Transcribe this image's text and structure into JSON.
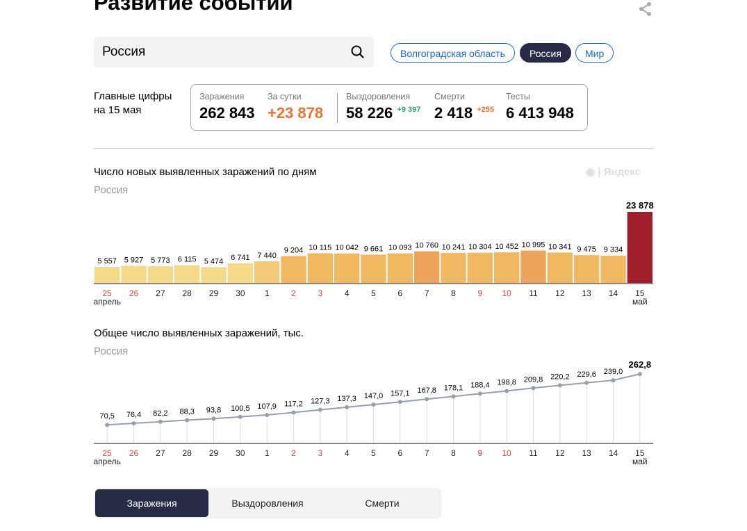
{
  "header": {
    "title": "Развитие событий"
  },
  "search": {
    "value": "Россия"
  },
  "regions": [
    {
      "label": "Волгоградская область",
      "active": false
    },
    {
      "label": "Россия",
      "active": true
    },
    {
      "label": "Мир",
      "active": false
    }
  ],
  "summary": {
    "label_line1": "Главные цифры",
    "label_line2": "на 15 мая",
    "infections": {
      "label": "Заражения",
      "value": "262 843"
    },
    "daily": {
      "label": "За сутки",
      "value": "+23 878"
    },
    "recovered": {
      "label": "Выздоровления",
      "value": "58 226",
      "delta": "+9 397"
    },
    "deaths": {
      "label": "Смерти",
      "value": "2 418",
      "delta": "+255"
    },
    "tests": {
      "label": "Тесты",
      "value": "6 413 948"
    }
  },
  "logo": "Яндекс",
  "colors": {
    "accent": "#1b66d4",
    "dark": "#282b45",
    "orange": "#f0702e",
    "green": "#2aa56b",
    "last_bar": "#a11f2d",
    "red_day": "#e8433a"
  },
  "chart_data": [
    {
      "type": "bar",
      "title": "Число новых выявленных заражений по дням",
      "subtitle": "Россия",
      "categories": [
        "25",
        "26",
        "27",
        "28",
        "29",
        "30",
        "1",
        "2",
        "3",
        "4",
        "5",
        "6",
        "7",
        "8",
        "9",
        "10",
        "11",
        "12",
        "13",
        "14",
        "15"
      ],
      "red_days": [
        "25",
        "26",
        "2",
        "3",
        "9",
        "10"
      ],
      "month_labels": {
        "first": "апрель",
        "last": "май"
      },
      "values": [
        5557,
        5927,
        5773,
        6115,
        5474,
        6741,
        7440,
        9204,
        10115,
        10042,
        9661,
        10093,
        10760,
        10241,
        10304,
        10452,
        10995,
        10341,
        9475,
        9334,
        23878
      ],
      "value_labels": [
        "5 557",
        "5 927",
        "5 773",
        "6 115",
        "5 474",
        "6 741",
        "7 440",
        "9 204",
        "10 115",
        "10 042",
        "9 661",
        "10 093",
        "10 760",
        "10 241",
        "10 304",
        "10 452",
        "10 995",
        "10 341",
        "9 475",
        "9 334",
        "23 878"
      ]
    },
    {
      "type": "line",
      "title": "Общее число выявленных заражений, тыс.",
      "subtitle": "Россия",
      "categories": [
        "25",
        "26",
        "27",
        "28",
        "29",
        "30",
        "1",
        "2",
        "3",
        "4",
        "5",
        "6",
        "7",
        "8",
        "9",
        "10",
        "11",
        "12",
        "13",
        "14",
        "15"
      ],
      "red_days": [
        "25",
        "26",
        "2",
        "3",
        "9",
        "10"
      ],
      "month_labels": {
        "first": "апрель",
        "last": "май"
      },
      "values": [
        70.5,
        76.4,
        82.2,
        88.3,
        93.8,
        100.5,
        107.9,
        117.2,
        127.3,
        137.3,
        147.0,
        157.1,
        167.8,
        178.1,
        188.4,
        198.8,
        209.8,
        220.2,
        229.6,
        239.0,
        262.8
      ],
      "value_labels": [
        "70,5",
        "76,4",
        "82,2",
        "88,3",
        "93,8",
        "100,5",
        "107,9",
        "117,2",
        "127,3",
        "137,3",
        "147,0",
        "157,1",
        "167,8",
        "178,1",
        "188,4",
        "198,8",
        "209,8",
        "220,2",
        "229,6",
        "239,0",
        "262,8"
      ]
    }
  ],
  "tabs": [
    {
      "label": "Заражения",
      "active": true
    },
    {
      "label": "Выздоровления",
      "active": false
    },
    {
      "label": "Смерти",
      "active": false
    }
  ]
}
